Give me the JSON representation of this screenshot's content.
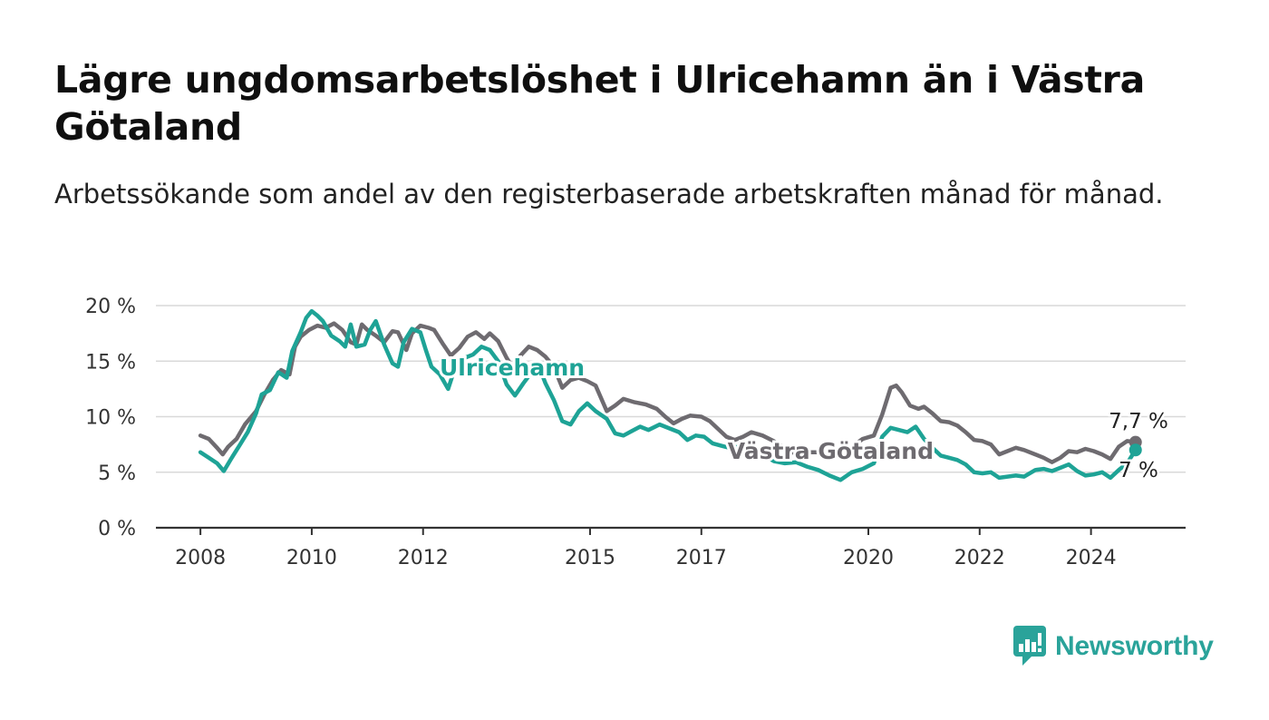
{
  "title": "Lägre ungdomsarbetslöshet i Ulricehamn än i Västra Götaland",
  "subtitle": "Arbetssökande som andel av den registerbaserade arbetskraften månad för månad.",
  "brand": {
    "name": "Newsworthy",
    "color": "#2aa39a",
    "icon": "newsworthy-logo-icon"
  },
  "chart_data": {
    "type": "line",
    "y_ticks": [
      {
        "value": 0,
        "label": "0 %"
      },
      {
        "value": 5,
        "label": "5 %"
      },
      {
        "value": 10,
        "label": "10 %"
      },
      {
        "value": 15,
        "label": "15 %"
      },
      {
        "value": 20,
        "label": "20 %"
      }
    ],
    "x_ticks": [
      {
        "value": 2008,
        "label": "2008"
      },
      {
        "value": 2010,
        "label": "2010"
      },
      {
        "value": 2012,
        "label": "2012"
      },
      {
        "value": 2015,
        "label": "2015"
      },
      {
        "value": 2017,
        "label": "2017"
      },
      {
        "value": 2020,
        "label": "2020"
      },
      {
        "value": 2022,
        "label": "2022"
      },
      {
        "value": 2024,
        "label": "2024"
      }
    ],
    "xlim": [
      2007.2,
      2025.7
    ],
    "ylim": [
      0,
      20
    ],
    "grid": true,
    "series": [
      {
        "name": "Västra Götaland",
        "color": "#6e6b70",
        "end_label": "7,7 %",
        "end_value": 7.7,
        "points": [
          [
            2008.0,
            8.3
          ],
          [
            2008.15,
            8.0
          ],
          [
            2008.3,
            7.2
          ],
          [
            2008.4,
            6.6
          ],
          [
            2008.5,
            7.3
          ],
          [
            2008.65,
            8.0
          ],
          [
            2008.8,
            9.3
          ],
          [
            2009.0,
            10.5
          ],
          [
            2009.15,
            12.0
          ],
          [
            2009.3,
            13.3
          ],
          [
            2009.45,
            14.2
          ],
          [
            2009.6,
            13.8
          ],
          [
            2009.7,
            16.3
          ],
          [
            2009.8,
            17.2
          ],
          [
            2009.95,
            17.8
          ],
          [
            2010.1,
            18.2
          ],
          [
            2010.25,
            18.0
          ],
          [
            2010.4,
            18.4
          ],
          [
            2010.55,
            17.8
          ],
          [
            2010.7,
            16.7
          ],
          [
            2010.8,
            16.5
          ],
          [
            2010.9,
            18.3
          ],
          [
            2011.0,
            17.8
          ],
          [
            2011.15,
            17.3
          ],
          [
            2011.3,
            16.7
          ],
          [
            2011.45,
            17.7
          ],
          [
            2011.55,
            17.6
          ],
          [
            2011.7,
            16.0
          ],
          [
            2011.8,
            17.5
          ],
          [
            2011.95,
            18.2
          ],
          [
            2012.1,
            18.0
          ],
          [
            2012.2,
            17.8
          ],
          [
            2012.35,
            16.6
          ],
          [
            2012.5,
            15.5
          ],
          [
            2012.65,
            16.2
          ],
          [
            2012.8,
            17.2
          ],
          [
            2012.95,
            17.6
          ],
          [
            2013.1,
            17.0
          ],
          [
            2013.2,
            17.5
          ],
          [
            2013.35,
            16.8
          ],
          [
            2013.5,
            15.3
          ],
          [
            2013.6,
            14.5
          ],
          [
            2013.75,
            15.5
          ],
          [
            2013.9,
            16.3
          ],
          [
            2014.05,
            16.0
          ],
          [
            2014.2,
            15.4
          ],
          [
            2014.35,
            14.5
          ],
          [
            2014.5,
            12.6
          ],
          [
            2014.65,
            13.3
          ],
          [
            2014.8,
            13.5
          ],
          [
            2014.95,
            13.2
          ],
          [
            2015.1,
            12.8
          ],
          [
            2015.3,
            10.5
          ],
          [
            2015.45,
            11.0
          ],
          [
            2015.6,
            11.6
          ],
          [
            2015.8,
            11.3
          ],
          [
            2016.0,
            11.1
          ],
          [
            2016.2,
            10.7
          ],
          [
            2016.35,
            10.0
          ],
          [
            2016.5,
            9.4
          ],
          [
            2016.65,
            9.8
          ],
          [
            2016.8,
            10.1
          ],
          [
            2017.0,
            10.0
          ],
          [
            2017.15,
            9.6
          ],
          [
            2017.3,
            8.9
          ],
          [
            2017.45,
            8.2
          ],
          [
            2017.6,
            7.9
          ],
          [
            2017.75,
            8.2
          ],
          [
            2017.9,
            8.6
          ],
          [
            2018.1,
            8.3
          ],
          [
            2018.3,
            7.8
          ],
          [
            2018.5,
            7.2
          ],
          [
            2018.7,
            6.6
          ],
          [
            2018.9,
            6.8
          ],
          [
            2019.1,
            6.8
          ],
          [
            2019.3,
            6.2
          ],
          [
            2019.5,
            6.5
          ],
          [
            2019.7,
            7.3
          ],
          [
            2019.9,
            8.0
          ],
          [
            2020.1,
            8.3
          ],
          [
            2020.25,
            10.2
          ],
          [
            2020.4,
            12.6
          ],
          [
            2020.5,
            12.8
          ],
          [
            2020.6,
            12.2
          ],
          [
            2020.75,
            11.0
          ],
          [
            2020.9,
            10.7
          ],
          [
            2021.0,
            10.9
          ],
          [
            2021.15,
            10.3
          ],
          [
            2021.3,
            9.6
          ],
          [
            2021.45,
            9.5
          ],
          [
            2021.6,
            9.2
          ],
          [
            2021.75,
            8.6
          ],
          [
            2021.9,
            7.9
          ],
          [
            2022.05,
            7.8
          ],
          [
            2022.2,
            7.5
          ],
          [
            2022.35,
            6.6
          ],
          [
            2022.5,
            6.9
          ],
          [
            2022.65,
            7.2
          ],
          [
            2022.8,
            7.0
          ],
          [
            2023.0,
            6.6
          ],
          [
            2023.15,
            6.3
          ],
          [
            2023.3,
            5.9
          ],
          [
            2023.45,
            6.3
          ],
          [
            2023.6,
            6.9
          ],
          [
            2023.75,
            6.8
          ],
          [
            2023.9,
            7.1
          ],
          [
            2024.05,
            6.9
          ],
          [
            2024.2,
            6.6
          ],
          [
            2024.35,
            6.2
          ],
          [
            2024.5,
            7.3
          ],
          [
            2024.65,
            7.8
          ],
          [
            2024.8,
            7.7
          ]
        ]
      },
      {
        "name": "Ulricehamn",
        "color": "#1ea396",
        "end_label": "7 %",
        "end_value": 7.0,
        "points": [
          [
            2008.0,
            6.8
          ],
          [
            2008.15,
            6.3
          ],
          [
            2008.3,
            5.8
          ],
          [
            2008.42,
            5.1
          ],
          [
            2008.55,
            6.2
          ],
          [
            2008.7,
            7.4
          ],
          [
            2008.85,
            8.6
          ],
          [
            2009.0,
            10.3
          ],
          [
            2009.1,
            12.0
          ],
          [
            2009.25,
            12.4
          ],
          [
            2009.4,
            14.0
          ],
          [
            2009.55,
            13.5
          ],
          [
            2009.65,
            15.9
          ],
          [
            2009.8,
            17.6
          ],
          [
            2009.9,
            18.9
          ],
          [
            2010.0,
            19.5
          ],
          [
            2010.1,
            19.1
          ],
          [
            2010.2,
            18.6
          ],
          [
            2010.35,
            17.3
          ],
          [
            2010.5,
            16.8
          ],
          [
            2010.6,
            16.3
          ],
          [
            2010.7,
            18.3
          ],
          [
            2010.8,
            16.3
          ],
          [
            2010.95,
            16.5
          ],
          [
            2011.05,
            17.8
          ],
          [
            2011.15,
            18.6
          ],
          [
            2011.3,
            16.5
          ],
          [
            2011.45,
            14.8
          ],
          [
            2011.55,
            14.5
          ],
          [
            2011.65,
            16.7
          ],
          [
            2011.8,
            17.9
          ],
          [
            2011.95,
            17.6
          ],
          [
            2012.05,
            16.0
          ],
          [
            2012.15,
            14.5
          ],
          [
            2012.3,
            13.8
          ],
          [
            2012.45,
            12.5
          ],
          [
            2012.6,
            14.8
          ],
          [
            2012.75,
            15.3
          ],
          [
            2012.9,
            15.6
          ],
          [
            2013.05,
            16.3
          ],
          [
            2013.2,
            16.0
          ],
          [
            2013.35,
            15.0
          ],
          [
            2013.5,
            12.9
          ],
          [
            2013.65,
            11.9
          ],
          [
            2013.8,
            13.0
          ],
          [
            2013.95,
            14.0
          ],
          [
            2014.1,
            14.3
          ],
          [
            2014.2,
            13.0
          ],
          [
            2014.35,
            11.5
          ],
          [
            2014.5,
            9.6
          ],
          [
            2014.65,
            9.3
          ],
          [
            2014.8,
            10.5
          ],
          [
            2014.95,
            11.2
          ],
          [
            2015.1,
            10.5
          ],
          [
            2015.3,
            9.8
          ],
          [
            2015.45,
            8.5
          ],
          [
            2015.6,
            8.3
          ],
          [
            2015.75,
            8.7
          ],
          [
            2015.9,
            9.1
          ],
          [
            2016.05,
            8.8
          ],
          [
            2016.25,
            9.3
          ],
          [
            2016.45,
            8.9
          ],
          [
            2016.6,
            8.6
          ],
          [
            2016.75,
            7.9
          ],
          [
            2016.9,
            8.3
          ],
          [
            2017.05,
            8.2
          ],
          [
            2017.2,
            7.6
          ],
          [
            2017.35,
            7.4
          ],
          [
            2017.5,
            7.2
          ],
          [
            2017.7,
            7.3
          ],
          [
            2017.9,
            6.9
          ],
          [
            2018.1,
            6.6
          ],
          [
            2018.3,
            6.0
          ],
          [
            2018.5,
            5.8
          ],
          [
            2018.7,
            5.9
          ],
          [
            2018.9,
            5.5
          ],
          [
            2019.1,
            5.2
          ],
          [
            2019.3,
            4.7
          ],
          [
            2019.5,
            4.3
          ],
          [
            2019.7,
            5.0
          ],
          [
            2019.9,
            5.3
          ],
          [
            2020.1,
            5.8
          ],
          [
            2020.25,
            8.2
          ],
          [
            2020.4,
            9.0
          ],
          [
            2020.55,
            8.8
          ],
          [
            2020.7,
            8.6
          ],
          [
            2020.85,
            9.1
          ],
          [
            2021.0,
            8.0
          ],
          [
            2021.15,
            7.2
          ],
          [
            2021.3,
            6.5
          ],
          [
            2021.45,
            6.3
          ],
          [
            2021.6,
            6.1
          ],
          [
            2021.75,
            5.7
          ],
          [
            2021.9,
            5.0
          ],
          [
            2022.05,
            4.9
          ],
          [
            2022.2,
            5.0
          ],
          [
            2022.35,
            4.5
          ],
          [
            2022.5,
            4.6
          ],
          [
            2022.65,
            4.7
          ],
          [
            2022.8,
            4.6
          ],
          [
            2023.0,
            5.2
          ],
          [
            2023.15,
            5.3
          ],
          [
            2023.3,
            5.1
          ],
          [
            2023.45,
            5.4
          ],
          [
            2023.6,
            5.7
          ],
          [
            2023.75,
            5.1
          ],
          [
            2023.9,
            4.7
          ],
          [
            2024.05,
            4.8
          ],
          [
            2024.2,
            5.0
          ],
          [
            2024.35,
            4.5
          ],
          [
            2024.5,
            5.2
          ],
          [
            2024.65,
            5.8
          ],
          [
            2024.8,
            7.0
          ]
        ]
      }
    ]
  }
}
